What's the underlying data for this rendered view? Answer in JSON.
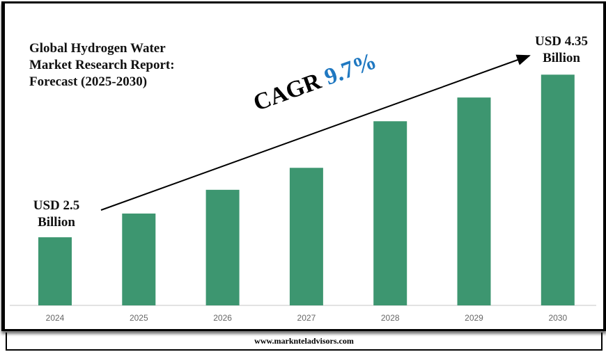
{
  "chart_data": {
    "type": "bar",
    "title": "Global Hydrogen Water Market Research Report: Forecast (2025-2030)",
    "title_lines": [
      "Global Hydrogen Water",
      "Market Research Report:",
      "Forecast (2025-2030)"
    ],
    "categories": [
      "2024",
      "2025",
      "2026",
      "2027",
      "2028",
      "2029",
      "2030"
    ],
    "values": [
      2.5,
      2.77,
      3.04,
      3.29,
      3.82,
      4.09,
      4.35
    ],
    "unit": "USD Billion",
    "ylim": [
      1.725,
      4.4
    ],
    "bar_color": "#3d9670",
    "grid": false,
    "annotations": {
      "start_label": [
        "USD 2.5",
        "Billion"
      ],
      "end_label": [
        "USD 4.35",
        "Billion"
      ],
      "cagr_label": "CAGR",
      "cagr_value": "9.7%",
      "cagr_color": "#1f78c1"
    }
  },
  "footer": {
    "website": "www.marknteladvisors.com"
  }
}
